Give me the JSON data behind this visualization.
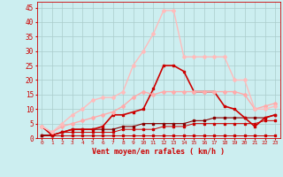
{
  "xlabel": "Vent moyen/en rafales ( km/h )",
  "background_color": "#cceef0",
  "grid_color": "#aacccc",
  "x": [
    0,
    1,
    2,
    3,
    4,
    5,
    6,
    7,
    8,
    9,
    10,
    11,
    12,
    13,
    14,
    15,
    16,
    17,
    18,
    19,
    20,
    21,
    22,
    23
  ],
  "ylim": [
    0,
    47
  ],
  "xlim": [
    -0.5,
    23.5
  ],
  "yticks": [
    0,
    5,
    10,
    15,
    20,
    25,
    30,
    35,
    40,
    45
  ],
  "series": [
    {
      "y": [
        1,
        1,
        1,
        1,
        1,
        1,
        1,
        1,
        1,
        1,
        1,
        1,
        1,
        1,
        1,
        1,
        1,
        1,
        1,
        1,
        1,
        1,
        1,
        1
      ],
      "color": "#cc0000",
      "lw": 0.7,
      "marker": "s",
      "ms": 1.5
    },
    {
      "y": [
        1,
        1,
        2,
        2,
        2,
        2,
        2,
        2,
        3,
        3,
        3,
        3,
        4,
        4,
        4,
        5,
        5,
        5,
        5,
        5,
        5,
        5,
        6,
        6
      ],
      "color": "#cc0000",
      "lw": 0.7,
      "marker": "s",
      "ms": 1.5
    },
    {
      "y": [
        1,
        1,
        2,
        3,
        3,
        3,
        3,
        3,
        4,
        4,
        5,
        5,
        5,
        5,
        5,
        6,
        6,
        7,
        7,
        7,
        7,
        7,
        7,
        8
      ],
      "color": "#880000",
      "lw": 0.8,
      "marker": "s",
      "ms": 1.5
    },
    {
      "y": [
        4,
        1,
        2,
        3,
        3,
        3,
        4,
        8,
        8,
        9,
        10,
        17,
        25,
        25,
        23,
        16,
        16,
        16,
        11,
        10,
        7,
        4,
        7,
        8
      ],
      "color": "#cc0000",
      "lw": 1.2,
      "marker": "s",
      "ms": 2.0
    },
    {
      "y": [
        4,
        2,
        4,
        5,
        6,
        7,
        8,
        9,
        11,
        14,
        16,
        15,
        16,
        16,
        16,
        16,
        16,
        16,
        16,
        16,
        15,
        10,
        11,
        12
      ],
      "color": "#ffaaaa",
      "lw": 1.0,
      "marker": "D",
      "ms": 2.0
    },
    {
      "y": [
        4,
        2,
        5,
        8,
        10,
        13,
        14,
        14,
        16,
        25,
        30,
        36,
        44,
        44,
        28,
        28,
        28,
        28,
        28,
        20,
        20,
        10,
        10,
        11
      ],
      "color": "#ffbbbb",
      "lw": 1.0,
      "marker": "D",
      "ms": 2.0
    }
  ]
}
